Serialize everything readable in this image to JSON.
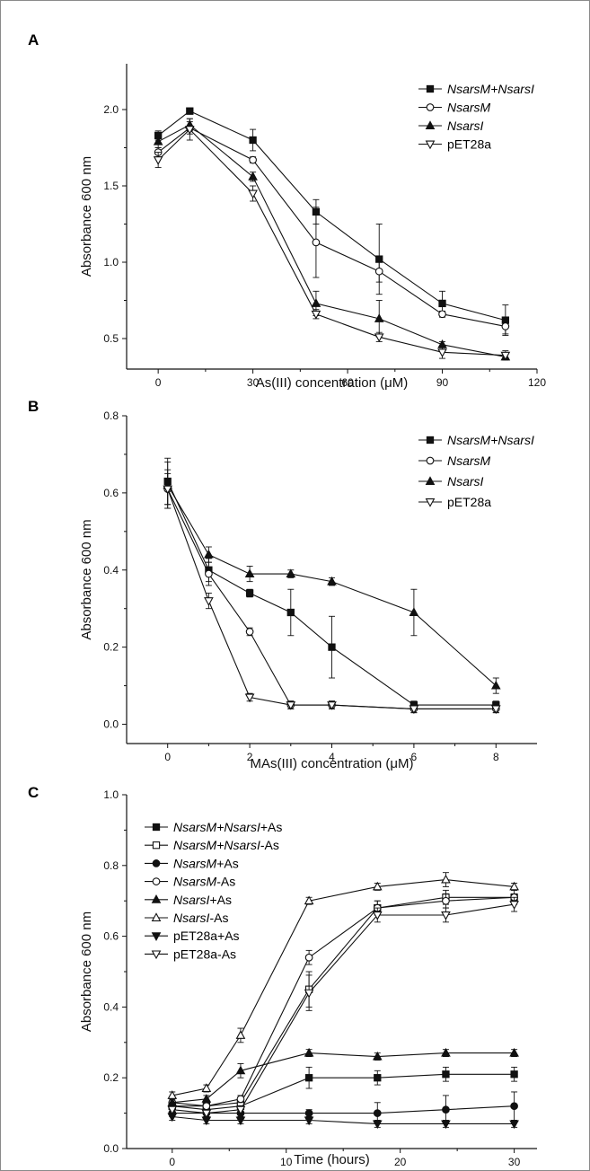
{
  "chart_data": [
    {
      "panel_label": "A",
      "type": "line",
      "xlabel": "As(III) concentration (μM)",
      "ylabel": "Absorbance 600 nm",
      "xlim": [
        -10,
        120
      ],
      "ylim": [
        0.3,
        2.3
      ],
      "xticks": [
        0,
        30,
        60,
        90,
        120
      ],
      "yticks": [
        0.5,
        1.0,
        1.5,
        2.0
      ],
      "ytick_labels": [
        "0.5",
        "1.0",
        "1.5",
        "2.0"
      ],
      "legend_position": "top-right",
      "x": [
        0,
        10,
        30,
        50,
        70,
        90,
        110
      ],
      "series": [
        {
          "name": "NsarsM+NsarsI",
          "italic": [
            0,
            13
          ],
          "marker": "square-filled",
          "values": [
            1.83,
            1.99,
            1.8,
            1.33,
            1.02,
            0.73,
            0.62
          ],
          "errors": [
            0.03,
            0.02,
            0.07,
            0.08,
            0.23,
            0.08,
            0.1
          ]
        },
        {
          "name": "NsarsM",
          "italic": [
            0,
            6
          ],
          "marker": "circle-open",
          "values": [
            1.72,
            1.88,
            1.67,
            1.13,
            0.94,
            0.66,
            0.58
          ],
          "errors": [
            0.03,
            0.04,
            0.02,
            0.23,
            0.07,
            0.02,
            0.05
          ]
        },
        {
          "name": "NsarsI",
          "italic": [
            0,
            6
          ],
          "marker": "triangle-up-filled",
          "values": [
            1.79,
            1.9,
            1.56,
            0.73,
            0.63,
            0.46,
            0.38
          ],
          "errors": [
            0.04,
            0.04,
            0.03,
            0.08,
            0.12,
            0.02,
            0.02
          ]
        },
        {
          "name": "pET28a",
          "italic": null,
          "marker": "triangle-down-open",
          "values": [
            1.67,
            1.87,
            1.45,
            0.66,
            0.51,
            0.41,
            0.39
          ],
          "errors": [
            0.05,
            0.07,
            0.05,
            0.03,
            0.03,
            0.04,
            0.03
          ]
        }
      ]
    },
    {
      "panel_label": "B",
      "type": "line",
      "xlabel": "MAs(III) concentration (μM)",
      "ylabel": "Absorbance 600 nm",
      "xlim": [
        -1,
        9
      ],
      "ylim": [
        -0.05,
        0.8
      ],
      "xticks": [
        0,
        2,
        4,
        6,
        8
      ],
      "yticks": [
        0.0,
        0.2,
        0.4,
        0.6,
        0.8
      ],
      "ytick_labels": [
        "0.0",
        "0.2",
        "0.4",
        "0.6",
        "0.8"
      ],
      "legend_position": "top-right",
      "series": [
        {
          "name": "NsarsM+NsarsI",
          "italic": [
            0,
            13
          ],
          "marker": "square-filled",
          "x": [
            0,
            1,
            2,
            3,
            4,
            6,
            8
          ],
          "values": [
            0.63,
            0.4,
            0.34,
            0.29,
            0.2,
            0.05,
            0.05
          ],
          "errors": [
            0.06,
            0.03,
            0.01,
            0.06,
            0.08,
            0.01,
            0.01
          ]
        },
        {
          "name": "NsarsM",
          "italic": [
            0,
            6
          ],
          "marker": "circle-open",
          "x": [
            0,
            1,
            2,
            3,
            4,
            6,
            8
          ],
          "values": [
            0.61,
            0.39,
            0.24,
            0.05,
            0.05,
            0.04,
            0.04
          ],
          "errors": [
            0.04,
            0.03,
            0.01,
            0.01,
            0.01,
            0.01,
            0.01
          ]
        },
        {
          "name": "NsarsI",
          "italic": [
            0,
            6
          ],
          "marker": "triangle-up-filled",
          "x": [
            0,
            1,
            2,
            3,
            4,
            6,
            8
          ],
          "values": [
            0.62,
            0.44,
            0.39,
            0.39,
            0.37,
            0.29,
            0.1
          ],
          "errors": [
            0.06,
            0.02,
            0.02,
            0.01,
            0.01,
            0.06,
            0.02
          ]
        },
        {
          "name": "pET28a",
          "italic": null,
          "marker": "triangle-down-open",
          "x": [
            0,
            1,
            2,
            3,
            4,
            6,
            8
          ],
          "values": [
            0.61,
            0.32,
            0.07,
            0.05,
            0.05,
            0.04,
            0.04
          ],
          "errors": [
            0.05,
            0.02,
            0.01,
            0.01,
            0.01,
            0.01,
            0.01
          ]
        }
      ]
    },
    {
      "panel_label": "C",
      "type": "line",
      "xlabel": "Time (hours)",
      "ylabel": "Absorbance 600 nm",
      "xlim": [
        -4,
        32
      ],
      "ylim": [
        0.0,
        1.0
      ],
      "xticks": [
        0,
        10,
        20,
        30
      ],
      "yticks": [
        0.0,
        0.2,
        0.4,
        0.6,
        0.8,
        1.0
      ],
      "ytick_labels": [
        "0.0",
        "0.2",
        "0.4",
        "0.6",
        "0.8",
        "1.0"
      ],
      "legend_position": "top-left",
      "x": [
        0,
        3,
        6,
        12,
        18,
        24,
        30
      ],
      "series": [
        {
          "name": "NsarsM+NsarsI+As",
          "italic": [
            0,
            13
          ],
          "marker": "square-filled",
          "values": [
            0.12,
            0.11,
            0.12,
            0.2,
            0.2,
            0.21,
            0.21
          ],
          "errors": [
            0.01,
            0.01,
            0.01,
            0.03,
            0.02,
            0.02,
            0.02
          ]
        },
        {
          "name": "NsarsM+NsarsI-As",
          "italic": [
            0,
            13
          ],
          "marker": "square-open",
          "values": [
            0.12,
            0.12,
            0.13,
            0.45,
            0.68,
            0.71,
            0.71
          ],
          "errors": [
            0.01,
            0.01,
            0.01,
            0.05,
            0.02,
            0.02,
            0.01
          ]
        },
        {
          "name": "NsarsM+As",
          "italic": [
            0,
            6
          ],
          "marker": "circle-filled",
          "values": [
            0.1,
            0.1,
            0.1,
            0.1,
            0.1,
            0.11,
            0.12
          ],
          "errors": [
            0.01,
            0.01,
            0.01,
            0.01,
            0.03,
            0.04,
            0.04
          ]
        },
        {
          "name": "NsarsM-As",
          "italic": [
            0,
            6
          ],
          "marker": "circle-open",
          "values": [
            0.13,
            0.12,
            0.14,
            0.54,
            0.68,
            0.7,
            0.71
          ],
          "errors": [
            0.01,
            0.01,
            0.01,
            0.02,
            0.02,
            0.02,
            0.02
          ]
        },
        {
          "name": "NsarsI+As",
          "italic": [
            0,
            6
          ],
          "marker": "triangle-up-filled",
          "values": [
            0.13,
            0.14,
            0.22,
            0.27,
            0.26,
            0.27,
            0.27
          ],
          "errors": [
            0.01,
            0.01,
            0.02,
            0.01,
            0.01,
            0.01,
            0.01
          ]
        },
        {
          "name": "NsarsI-As",
          "italic": [
            0,
            6
          ],
          "marker": "triangle-up-open",
          "values": [
            0.15,
            0.17,
            0.32,
            0.7,
            0.74,
            0.76,
            0.74
          ],
          "errors": [
            0.01,
            0.01,
            0.02,
            0.01,
            0.01,
            0.02,
            0.01
          ]
        },
        {
          "name": "pET28a+As",
          "italic": null,
          "marker": "triangle-down-filled",
          "values": [
            0.09,
            0.08,
            0.08,
            0.08,
            0.07,
            0.07,
            0.07
          ],
          "errors": [
            0.01,
            0.01,
            0.01,
            0.01,
            0.01,
            0.01,
            0.01
          ]
        },
        {
          "name": "pET28a-As",
          "italic": null,
          "marker": "triangle-down-open",
          "values": [
            0.11,
            0.1,
            0.11,
            0.44,
            0.66,
            0.66,
            0.69
          ],
          "errors": [
            0.01,
            0.01,
            0.01,
            0.05,
            0.02,
            0.02,
            0.02
          ]
        }
      ]
    }
  ]
}
